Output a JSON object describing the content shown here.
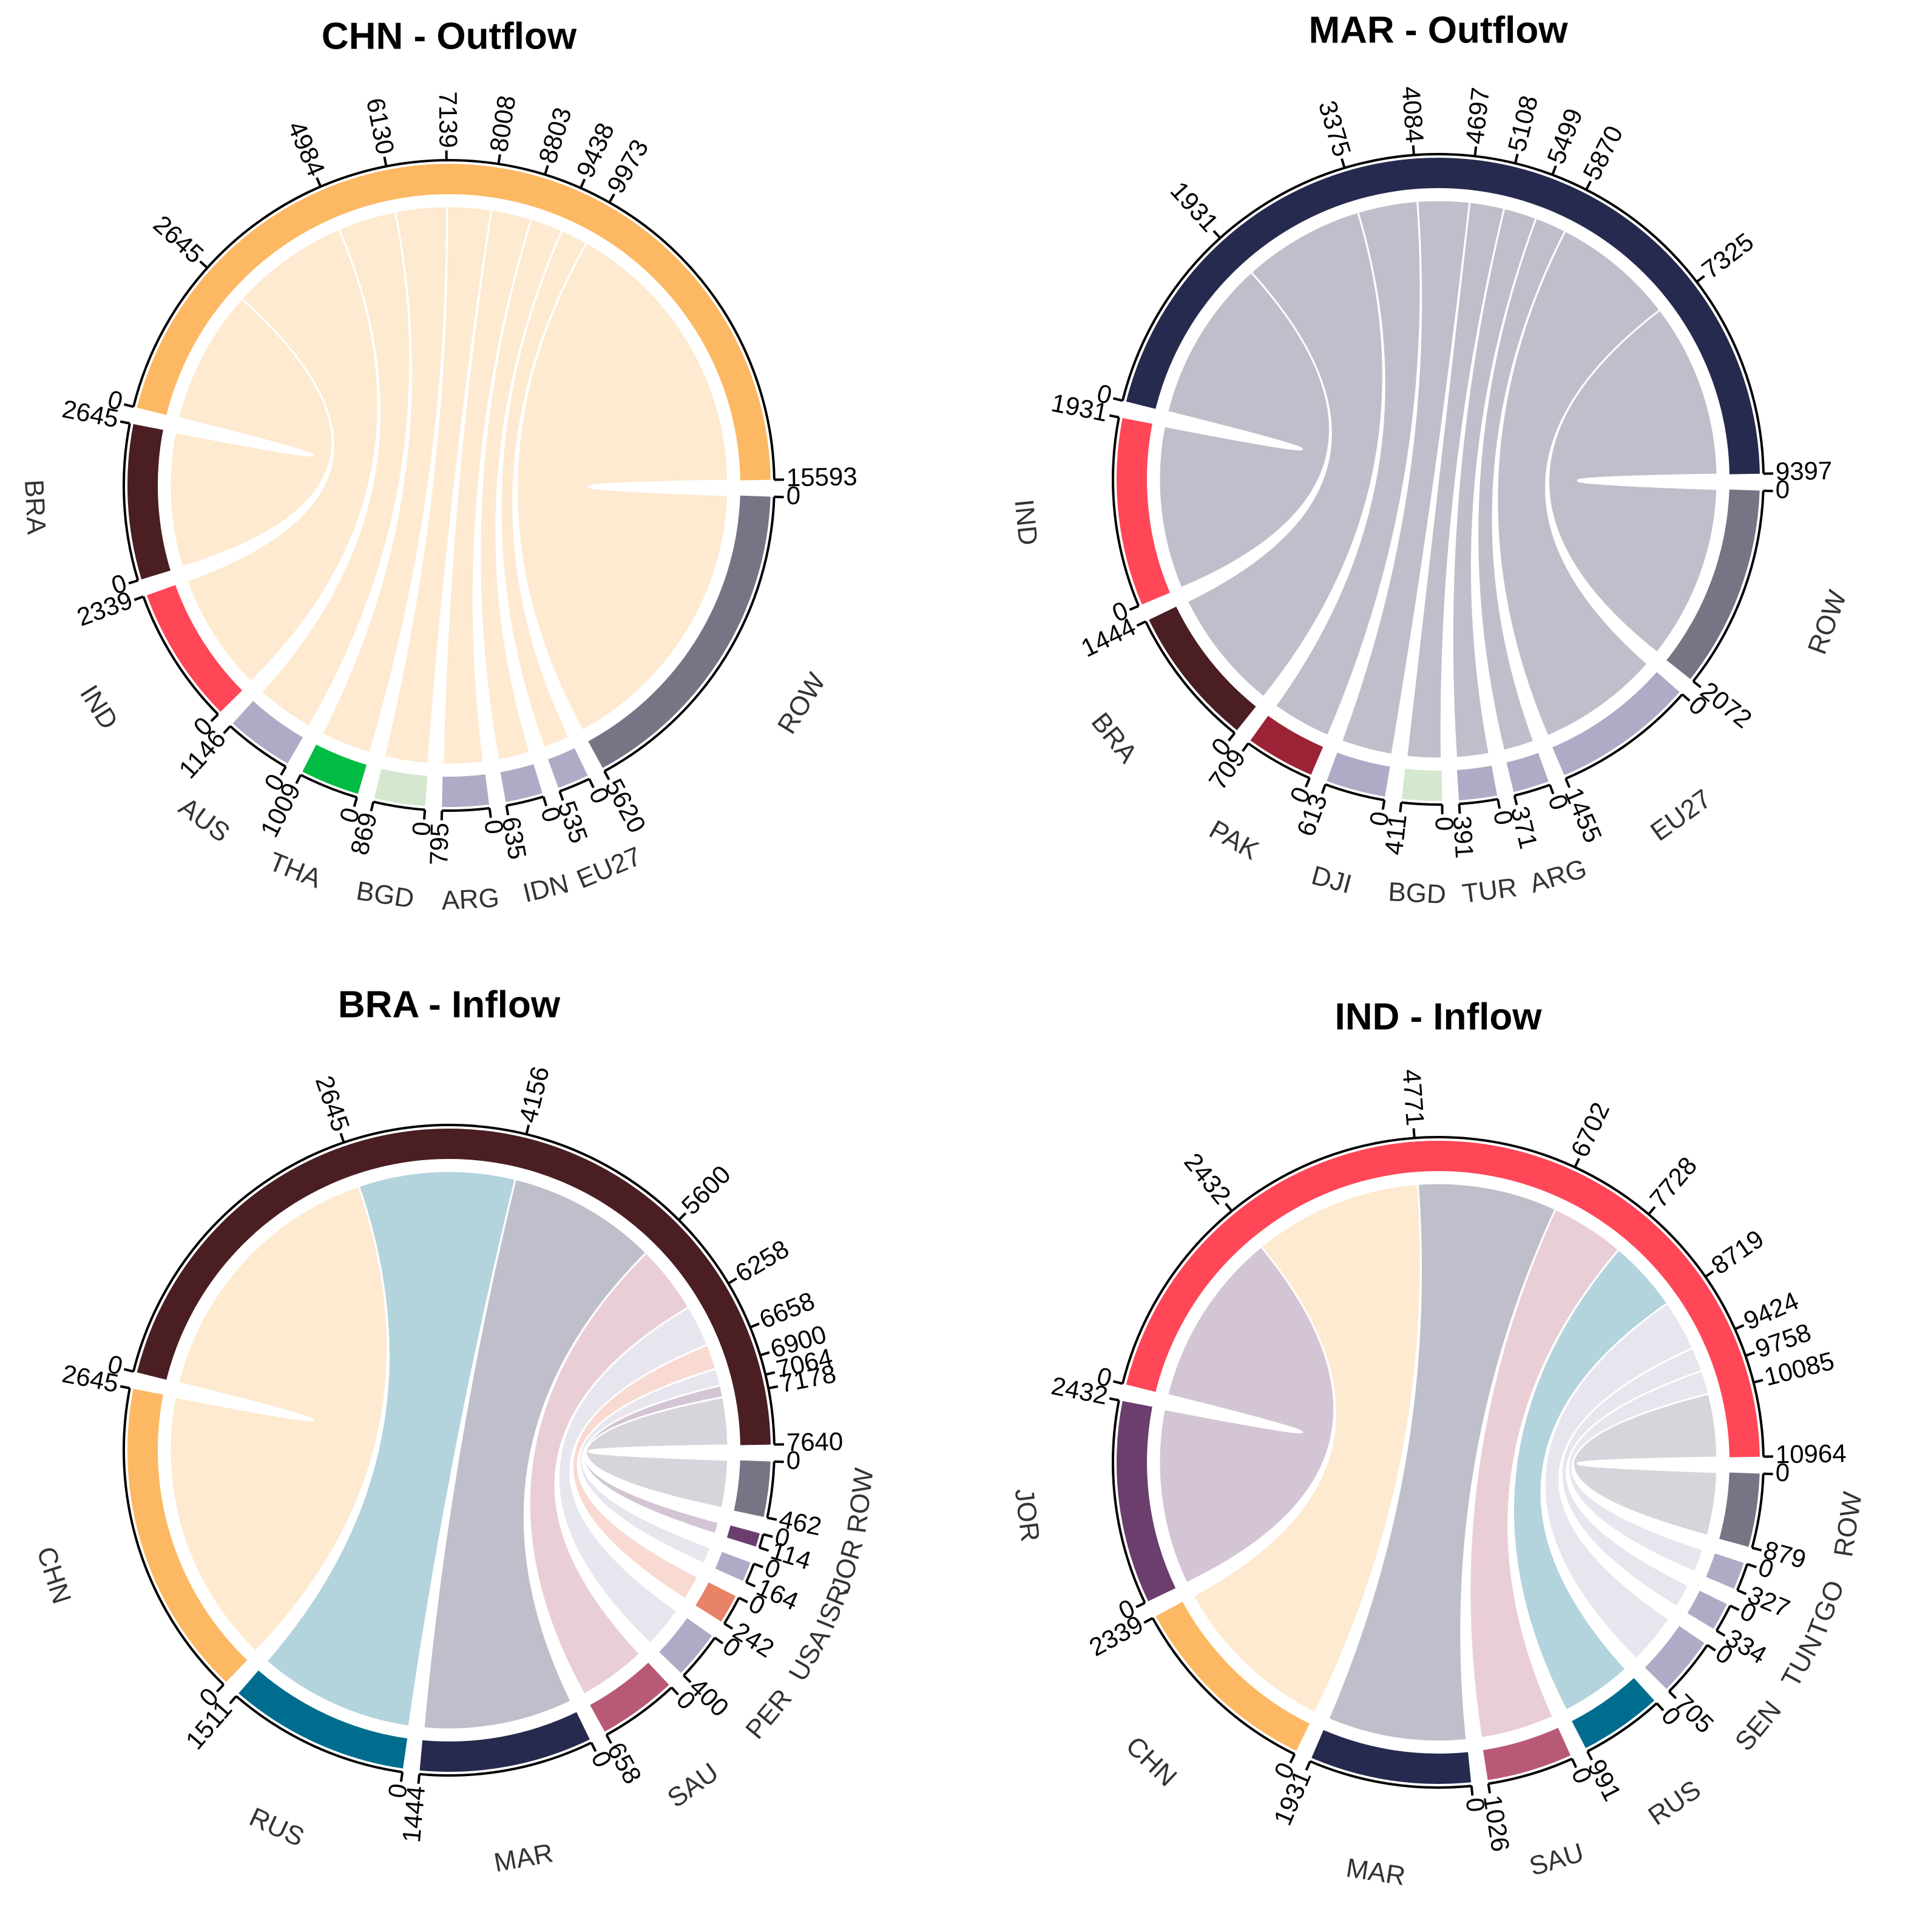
{
  "chart_data": [
    {
      "type": "chord",
      "title": "CHN - Outflow",
      "direction": "outflow",
      "sectors": [
        {
          "name": "CHN",
          "color": "#fdb863",
          "ticks": [
            0,
            2645,
            4984,
            6130,
            7139,
            8008,
            8803,
            9438,
            9973,
            15593
          ]
        },
        {
          "name": "ROW",
          "color": "#787486",
          "ticks": [
            0,
            5620
          ]
        },
        {
          "name": "EU27",
          "color": "#aeabc6",
          "ticks": [
            0,
            535
          ]
        },
        {
          "name": "IDN",
          "color": "#aeabc6",
          "ticks": [
            0,
            635
          ]
        },
        {
          "name": "ARG",
          "color": "#aeabc6",
          "ticks": [
            0,
            795
          ]
        },
        {
          "name": "BGD",
          "color": "#d4e8cf",
          "ticks": [
            0,
            869
          ]
        },
        {
          "name": "THA",
          "color": "#00bb44",
          "ticks": [
            0,
            1009
          ]
        },
        {
          "name": "AUS",
          "color": "#aeabc6",
          "ticks": [
            0,
            1146
          ]
        },
        {
          "name": "IND",
          "color": "#ff4757",
          "ticks": [
            0,
            2339
          ]
        },
        {
          "name": "BRA",
          "color": "#4a1e22",
          "ticks": [
            0,
            2645
          ]
        }
      ]
    },
    {
      "type": "chord",
      "title": "MAR - Outflow",
      "direction": "outflow",
      "sectors": [
        {
          "name": "MAR",
          "color": "#262a4e",
          "ticks": [
            0,
            1931,
            3375,
            4084,
            4697,
            5108,
            5499,
            5870,
            7325,
            9397
          ]
        },
        {
          "name": "ROW",
          "color": "#787486",
          "ticks": [
            0,
            2072
          ]
        },
        {
          "name": "EU27",
          "color": "#aeabc6",
          "ticks": [
            0,
            1455
          ]
        },
        {
          "name": "ARG",
          "color": "#aeabc6",
          "ticks": [
            0,
            371
          ]
        },
        {
          "name": "TUR",
          "color": "#aeabc6",
          "ticks": [
            0,
            391
          ]
        },
        {
          "name": "BGD",
          "color": "#d4e8cf",
          "ticks": [
            0,
            411
          ]
        },
        {
          "name": "DJI",
          "color": "#aeabc6",
          "ticks": [
            0,
            613
          ]
        },
        {
          "name": "PAK",
          "color": "#9b2335",
          "ticks": [
            0,
            709
          ]
        },
        {
          "name": "BRA",
          "color": "#4a1e22",
          "ticks": [
            0,
            1444
          ]
        },
        {
          "name": "IND",
          "color": "#ff4757",
          "ticks": [
            0,
            1931
          ]
        }
      ]
    },
    {
      "type": "chord",
      "title": "BRA - Inflow",
      "direction": "inflow",
      "sectors": [
        {
          "name": "BRA",
          "color": "#4a1e22",
          "ticks": [
            0,
            2645,
            4156,
            5600,
            6258,
            6658,
            6900,
            7064,
            7178,
            7640
          ]
        },
        {
          "name": "ROW",
          "color": "#787486",
          "ticks": [
            0,
            462
          ]
        },
        {
          "name": "JOR",
          "color": "#6b3e6e",
          "ticks": [
            0,
            114
          ]
        },
        {
          "name": "ISR",
          "color": "#aeabc6",
          "ticks": [
            0,
            164
          ]
        },
        {
          "name": "USA",
          "color": "#e8836a",
          "ticks": [
            0,
            242
          ]
        },
        {
          "name": "PER",
          "color": "#aeabc6",
          "ticks": [
            0,
            400
          ]
        },
        {
          "name": "SAU",
          "color": "#b85a76",
          "ticks": [
            0,
            658
          ]
        },
        {
          "name": "MAR",
          "color": "#262a4e",
          "ticks": [
            0,
            1444
          ]
        },
        {
          "name": "RUS",
          "color": "#006d8f",
          "ticks": [
            0,
            1511
          ]
        },
        {
          "name": "CHN",
          "color": "#fdb863",
          "ticks": [
            0,
            2645
          ]
        }
      ]
    },
    {
      "type": "chord",
      "title": "IND - Inflow",
      "direction": "inflow",
      "sectors": [
        {
          "name": "IND",
          "color": "#ff4757",
          "ticks": [
            0,
            2432,
            4771,
            6702,
            7728,
            8719,
            9424,
            9758,
            10085,
            10964
          ]
        },
        {
          "name": "ROW",
          "color": "#787486",
          "ticks": [
            0,
            879
          ]
        },
        {
          "name": "TGO",
          "color": "#aeabc6",
          "ticks": [
            0,
            327
          ]
        },
        {
          "name": "TUN",
          "color": "#aeabc6",
          "ticks": [
            0,
            334
          ]
        },
        {
          "name": "SEN",
          "color": "#aeabc6",
          "ticks": [
            0,
            705
          ]
        },
        {
          "name": "RUS",
          "color": "#006d8f",
          "ticks": [
            0,
            991
          ]
        },
        {
          "name": "SAU",
          "color": "#b85a76",
          "ticks": [
            0,
            1026
          ]
        },
        {
          "name": "MAR",
          "color": "#262a4e",
          "ticks": [
            0,
            1931
          ]
        },
        {
          "name": "CHN",
          "color": "#fdb863",
          "ticks": [
            0,
            2339
          ]
        },
        {
          "name": "JOR",
          "color": "#6b3e6e",
          "ticks": [
            0,
            2432
          ]
        }
      ]
    }
  ]
}
